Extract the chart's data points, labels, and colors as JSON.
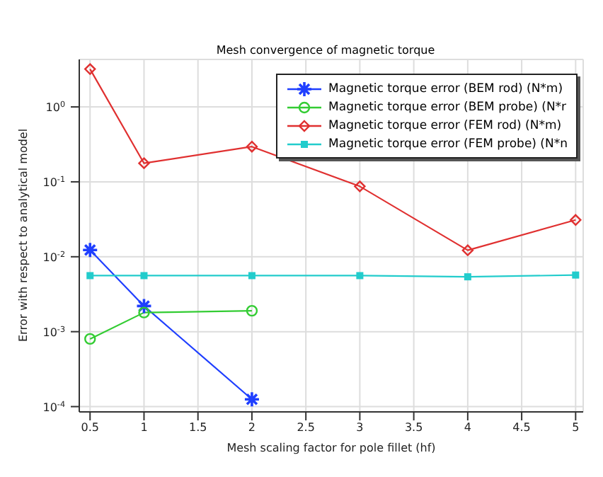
{
  "chart_data": {
    "type": "line",
    "title": "Mesh convergence of magnetic torque",
    "xlabel": "Mesh scaling factor for pole fillet (hf)",
    "ylabel": "Error with respect to analytical model",
    "log": "y",
    "grid": true,
    "legend": "top right",
    "xlim": [
      0.4,
      5.07
    ],
    "xticks": [
      0.5,
      1,
      1.5,
      2,
      2.5,
      3,
      3.5,
      4,
      4.5,
      5
    ],
    "ylim": [
      8.5e-05,
      4.3
    ],
    "yticks": [
      {
        "value": 0.0001,
        "label": "10$^{-4}$"
      },
      {
        "value": 0.001,
        "label": "10$^{-3}$"
      },
      {
        "value": 0.01,
        "label": "10$^{-2}$"
      },
      {
        "value": 0.1,
        "label": "10$^{-1}$"
      },
      {
        "value": 1,
        "label": "10$^{0}$"
      }
    ],
    "series": [
      {
        "name": "Magnetic torque error (BEM rod) (N*m)",
        "color": "#1f3fff",
        "marker": "cross",
        "x": [
          0.5,
          1,
          2
        ],
        "values": [
          0.0123,
          0.0022,
          0.000125
        ]
      },
      {
        "name": "Magnetic torque error (BEM probe) (N*r",
        "color": "#33cc33",
        "marker": "circle",
        "x": [
          0.5,
          1,
          2
        ],
        "values": [
          0.0008,
          0.0018,
          0.0019
        ]
      },
      {
        "name": "Magnetic torque error (FEM rod) (N*m)",
        "color": "#e03030",
        "marker": "diamond",
        "x": [
          0.5,
          1,
          2,
          3,
          4,
          5
        ],
        "values": [
          3.2,
          0.177,
          0.295,
          0.087,
          0.0122,
          0.031
        ]
      },
      {
        "name": "Magnetic torque error (FEM probe) (N*n",
        "color": "#22cccc",
        "marker": "square",
        "x": [
          0.5,
          1,
          2,
          3,
          4,
          5
        ],
        "values": [
          0.0056,
          0.0056,
          0.0056,
          0.0056,
          0.0054,
          0.0057
        ]
      }
    ]
  }
}
